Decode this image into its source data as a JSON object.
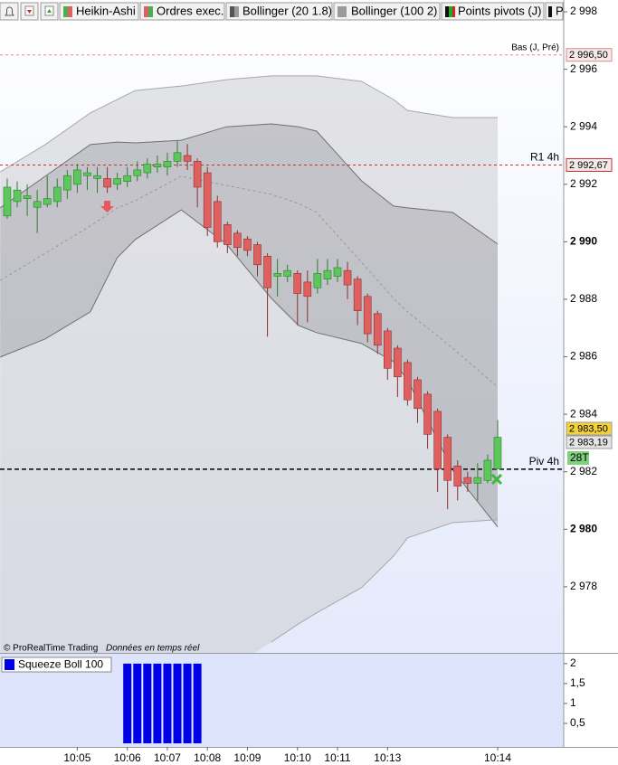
{
  "chart_data": {
    "type": "candlestick",
    "toolbar_more": "P",
    "watermark": "© ProRealTime Trading",
    "data_note": "Données en temps réel",
    "xlim": [
      -0.72,
      55.6
    ],
    "xticks": [
      {
        "value": 7,
        "label": "10:05"
      },
      {
        "value": 12,
        "label": "10:06"
      },
      {
        "value": 16,
        "label": "10:07"
      },
      {
        "value": 20,
        "label": "10:08"
      },
      {
        "value": 24,
        "label": "10:09"
      },
      {
        "value": 29,
        "label": "10:10"
      },
      {
        "value": 33,
        "label": "10:11"
      },
      {
        "value": 38,
        "label": "10:13"
      },
      {
        "value": 49,
        "label": "10:14"
      }
    ],
    "ylim": [
      2975.7,
      2998.41
    ],
    "yticks": [
      {
        "value": 2998,
        "label": "2 998"
      },
      {
        "value": 2996,
        "label": "2 996"
      },
      {
        "value": 2994,
        "label": "2 994"
      },
      {
        "value": 2992,
        "label": "2 992"
      },
      {
        "value": 2990,
        "label": "2 990"
      },
      {
        "value": 2988,
        "label": "2 988"
      },
      {
        "value": 2986,
        "label": "2 986"
      },
      {
        "value": 2984,
        "label": "2 984"
      },
      {
        "value": 2982,
        "label": "2 982"
      },
      {
        "value": 2980,
        "label": "2 980"
      },
      {
        "value": 2978,
        "label": "2 978"
      }
    ],
    "candles": {
      "name": "Heikin-Ashi",
      "up_color": "#5cc85c",
      "down_color": "#e06060",
      "open": [
        2990.9,
        2991.4,
        2991.5,
        2991.2,
        2991.3,
        2991.4,
        2991.8,
        2992.0,
        2992.3,
        2992.2,
        2992.2,
        2992.0,
        2992.1,
        2992.3,
        2992.4,
        2992.6,
        2992.6,
        2992.8,
        2993.0,
        2992.8,
        2992.4,
        2991.4,
        2990.6,
        2990.3,
        2990.1,
        2989.9,
        2989.5,
        2988.8,
        2988.8,
        2988.9,
        2988.6,
        2988.4,
        2988.7,
        2988.8,
        2989.0,
        2988.7,
        2988.1,
        2987.5,
        2986.9,
        2986.3,
        2985.8,
        2985.2,
        2984.7,
        2984.1,
        2983.2,
        2982.2,
        2981.8,
        2981.6,
        2981.7,
        2982.1
      ],
      "high": [
        2992.2,
        2992.1,
        2992.0,
        2991.8,
        2992.3,
        2992.2,
        2992.5,
        2992.7,
        2992.6,
        2992.6,
        2992.6,
        2992.4,
        2992.6,
        2992.8,
        2992.9,
        2993.0,
        2993.1,
        2993.5,
        2993.4,
        2992.9,
        2992.6,
        2991.6,
        2990.7,
        2990.4,
        2990.2,
        2990.0,
        2989.6,
        2989.4,
        2989.2,
        2989.0,
        2989.0,
        2989.4,
        2989.4,
        2989.4,
        2989.3,
        2988.8,
        2988.2,
        2987.6,
        2987.0,
        2986.4,
        2985.9,
        2985.3,
        2984.8,
        2984.2,
        2983.3,
        2982.4,
        2982.0,
        2982.3,
        2982.6,
        2983.8
      ],
      "low": [
        2990.8,
        2991.2,
        2990.9,
        2990.3,
        2991.2,
        2991.2,
        2991.5,
        2991.7,
        2991.8,
        2991.7,
        2991.7,
        2991.8,
        2991.9,
        2992.1,
        2992.2,
        2992.4,
        2992.3,
        2992.6,
        2992.5,
        2991.2,
        2990.2,
        2989.8,
        2989.6,
        2989.5,
        2989.5,
        2988.8,
        2986.7,
        2988.1,
        2988.6,
        2987.1,
        2987.2,
        2988.2,
        2988.5,
        2988.6,
        2988.0,
        2987.1,
        2986.5,
        2986.1,
        2985.2,
        2984.6,
        2984.3,
        2983.7,
        2982.8,
        2981.3,
        2980.7,
        2981.0,
        2981.3,
        2981.0,
        2981.6,
        2982.1
      ],
      "close": [
        2991.9,
        2991.8,
        2991.6,
        2991.4,
        2991.5,
        2991.9,
        2992.3,
        2992.5,
        2992.4,
        2992.3,
        2991.9,
        2992.2,
        2992.3,
        2992.5,
        2992.7,
        2992.7,
        2992.8,
        2993.1,
        2992.8,
        2991.9,
        2990.5,
        2990.0,
        2989.9,
        2989.8,
        2989.7,
        2989.2,
        2988.4,
        2988.9,
        2989.0,
        2988.2,
        2988.1,
        2988.9,
        2989.0,
        2989.1,
        2988.5,
        2987.6,
        2986.8,
        2986.4,
        2985.6,
        2985.3,
        2984.5,
        2984.2,
        2983.3,
        2982.1,
        2981.7,
        2981.5,
        2981.6,
        2981.8,
        2982.4,
        2983.2
      ]
    },
    "orders": {
      "name": "Ordres exec."
    },
    "band_x": [
      -0.7,
      3.8,
      8.3,
      11.0,
      12.8,
      17.4,
      21.9,
      26.4,
      29.1,
      30.9,
      35.4,
      38.6,
      40.0,
      44.5,
      49.0
    ],
    "bands": [
      {
        "name": "Bollinger (20 1.8)",
        "color": "#707070",
        "fill": "rgba(140,140,145,0.35)",
        "upper": [
          2991.18,
          2992.28,
          2993.38,
          2993.47,
          2993.44,
          2993.53,
          2994.0,
          2994.1,
          2994.0,
          2993.85,
          2992.12,
          2991.24,
          2991.18,
          2991.02,
          2989.92
        ],
        "middle": [
          2988.66,
          2989.6,
          2990.55,
          2991.18,
          2991.43,
          2992.28,
          2991.96,
          2991.65,
          2991.33,
          2991.02,
          2989.29,
          2988.03,
          2987.56,
          2986.3,
          2984.95
        ],
        "lower": [
          2985.99,
          2986.62,
          2987.56,
          2989.45,
          2990.08,
          2991.11,
          2989.92,
          2988.03,
          2987.09,
          2986.84,
          2986.46,
          2985.83,
          2985.2,
          2982.06,
          2980.08
        ]
      },
      {
        "name": "Bollinger (100 2)",
        "color": "#a8a8ac",
        "fill": "rgba(205,205,210,0.55)",
        "upper": [
          2992.43,
          2993.38,
          2994.48,
          2994.95,
          2995.26,
          2995.42,
          2995.64,
          2995.77,
          2995.77,
          2995.77,
          2995.58,
          2994.95,
          2994.57,
          2994.32,
          2994.32
        ],
        "lower": [
          null,
          null,
          null,
          null,
          null,
          null,
          null,
          2976.08,
          2976.71,
          2977.09,
          2977.97,
          2979.07,
          2979.7,
          2980.23,
          2980.33
        ]
      }
    ],
    "pivots": {
      "name": "Points pivots (J)",
      "levels": [
        {
          "name": "Bas (J, Pré)",
          "value": 2996.5,
          "value_label": "2 996,50",
          "color": "#e08888"
        },
        {
          "name": "R1 4h",
          "value": 2992.67,
          "value_label": "2 992,67",
          "color": "#d42a2a"
        },
        {
          "name": "Piv 4h",
          "value": 2982.09,
          "color": "#000000"
        }
      ]
    },
    "price_tags": [
      {
        "value": 2983.5,
        "label": "2 983,50",
        "color": "#f2d23c"
      },
      {
        "value": 2983.19,
        "label": "2 983,19",
        "color": "#e4e4e4"
      }
    ],
    "countdown": "28T",
    "panel": {
      "type": "bar",
      "name": "Squeeze Boll 100",
      "color": "#0000e6",
      "x": [
        12,
        13,
        14,
        15,
        16,
        17,
        18,
        19
      ],
      "values": [
        2,
        2,
        2,
        2,
        2,
        2,
        2,
        2
      ],
      "ylim": [
        -0.09,
        2.27
      ],
      "yticks": [
        2,
        {
          "value": 1.5,
          "label": "1,5"
        },
        1,
        {
          "value": 0.5,
          "label": "0,5"
        }
      ]
    }
  }
}
